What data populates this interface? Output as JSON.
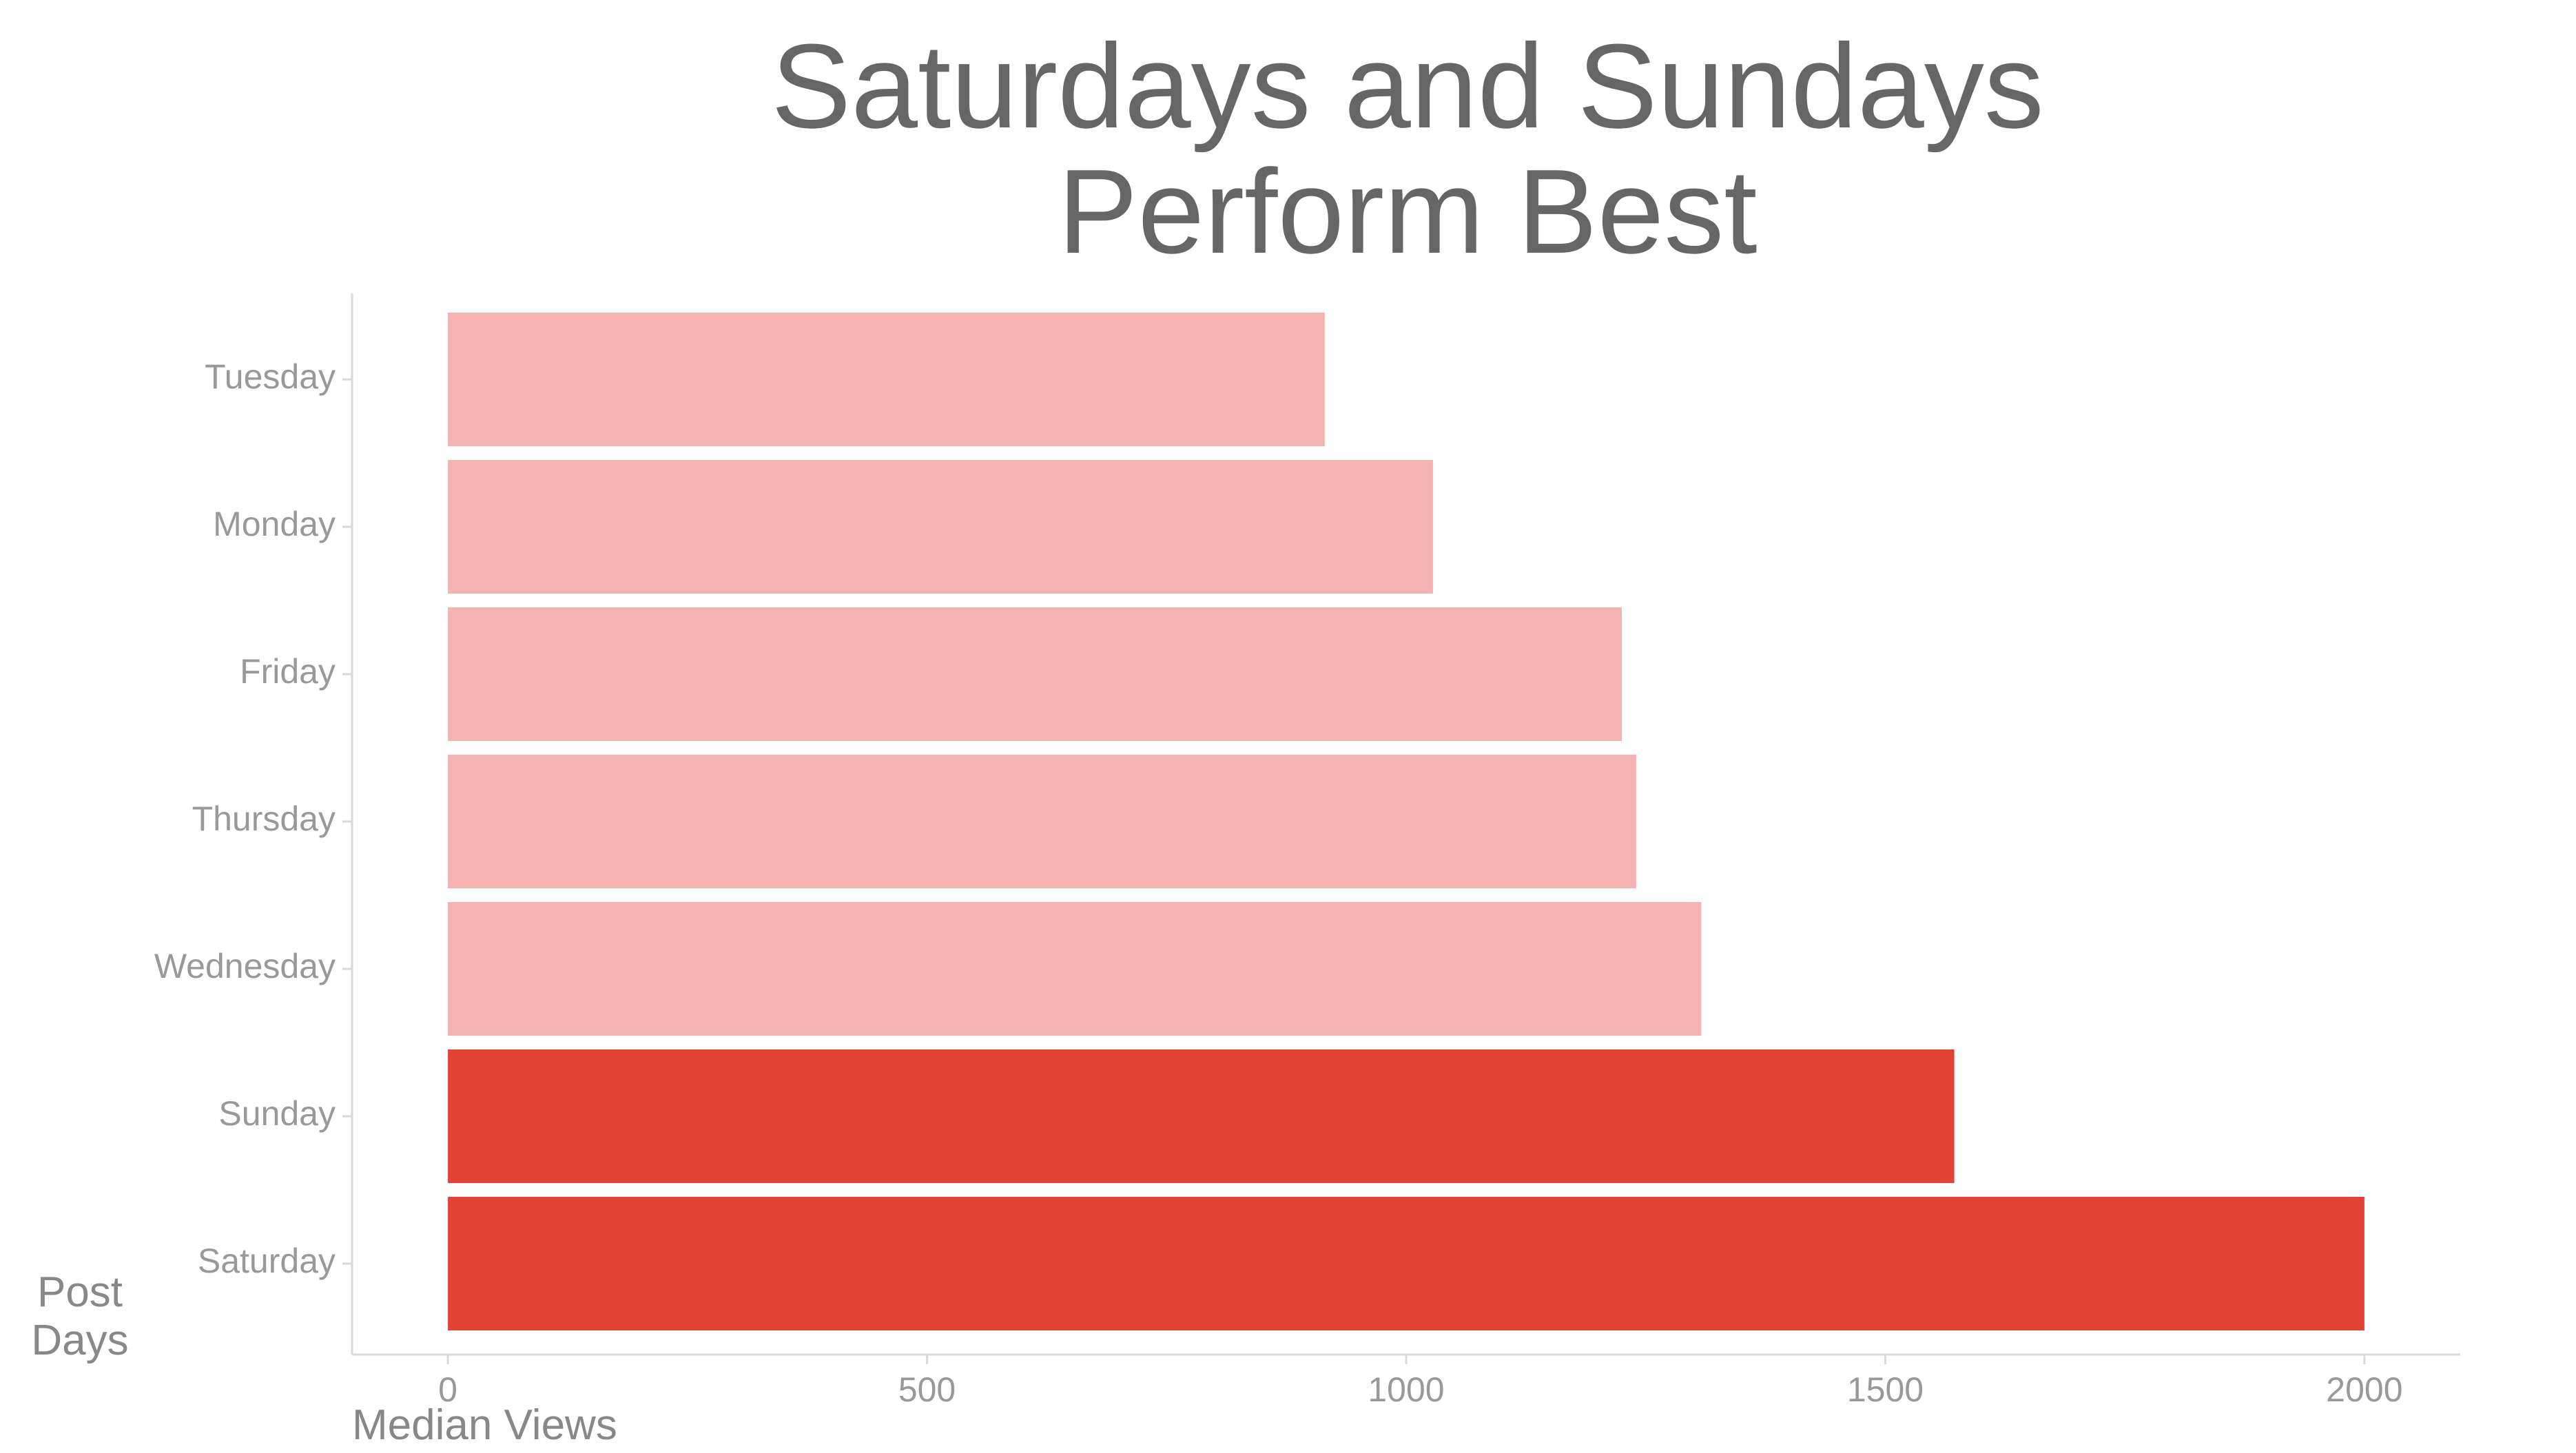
{
  "chart_data": {
    "type": "bar",
    "orientation": "horizontal",
    "title_lines": [
      "Saturdays and Sundays",
      "Perform Best"
    ],
    "xlabel": "Median Views",
    "ylabel_lines": [
      "Post",
      "Days"
    ],
    "categories": [
      "Tuesday",
      "Monday",
      "Friday",
      "Thursday",
      "Wednesday",
      "Sunday",
      "Saturday"
    ],
    "values": [
      915,
      1028,
      1225,
      1240,
      1308,
      1572,
      2000
    ],
    "highlight": [
      false,
      false,
      false,
      false,
      false,
      true,
      true
    ],
    "xlim": [
      -100,
      2100
    ],
    "xticks": [
      "0",
      "500",
      "1000",
      "1500",
      "2000"
    ],
    "grid": false,
    "colors": {
      "bar": "#f4b3b0",
      "highlight": "#e34234",
      "axis": "#d9d9d9",
      "text": "#999999",
      "title": "#666666"
    }
  }
}
